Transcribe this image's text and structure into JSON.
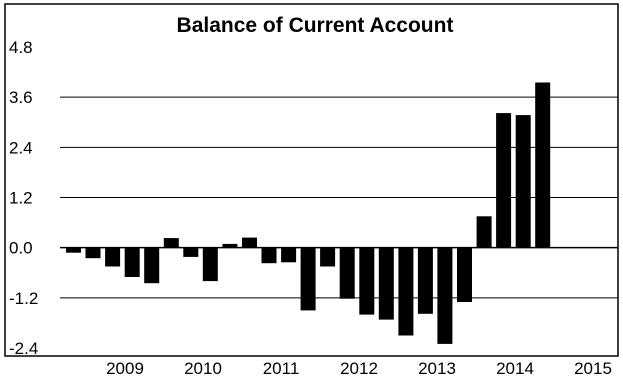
{
  "chart_data": {
    "type": "bar",
    "title": "Balance of Current Account",
    "xlabel": "",
    "ylabel": "",
    "ylim": [
      -2.4,
      4.8
    ],
    "y_ticks": [
      "4.8",
      "3.6",
      "2.4",
      "1.2",
      "0.0",
      "-1.2",
      "-2.4"
    ],
    "y_tick_values": [
      4.8,
      3.6,
      2.4,
      1.2,
      0.0,
      -1.2,
      -2.4
    ],
    "x_tick_labels": [
      "2009",
      "2010",
      "2011",
      "2012",
      "2013",
      "2014",
      "2015"
    ],
    "grid": "horizontal",
    "bar_color": "#000000",
    "values": [
      -0.12,
      -0.25,
      -0.45,
      -0.7,
      -0.85,
      0.23,
      -0.22,
      -0.8,
      0.09,
      0.24,
      -0.37,
      -0.35,
      -1.5,
      -0.45,
      -1.22,
      -1.6,
      -1.72,
      -2.1,
      -1.58,
      -2.3,
      -1.3,
      0.75,
      3.22,
      3.17,
      3.95
    ]
  }
}
